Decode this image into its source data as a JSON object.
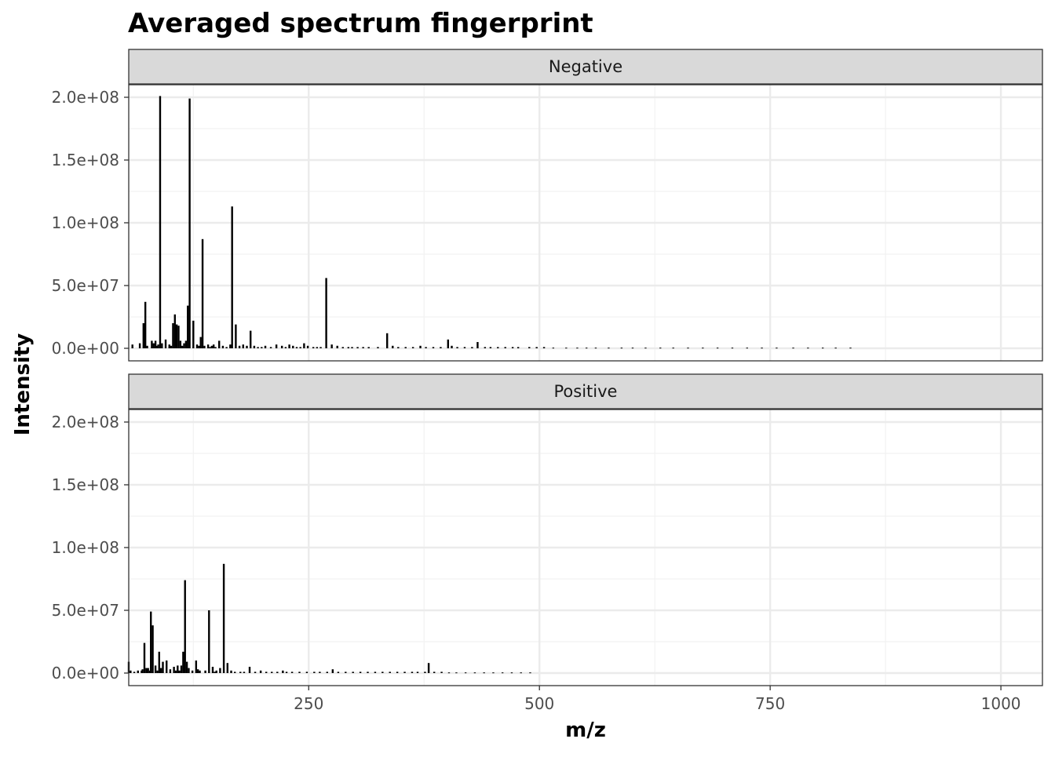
{
  "chart_data": {
    "type": "bar",
    "title": "Averaged spectrum fingerprint",
    "xlabel": "m/z",
    "ylabel": "Intensity",
    "xlim": [
      55,
      1045
    ],
    "ylim": [
      -10000000,
      210000000
    ],
    "x_ticks": [
      250,
      500,
      750,
      1000
    ],
    "x_tick_labels": [
      "250",
      "500",
      "750",
      "1000"
    ],
    "y_ticks": [
      0,
      50000000,
      100000000,
      150000000,
      200000000
    ],
    "y_tick_labels": [
      "0.0e+00",
      "5.0e+07",
      "1.0e+08",
      "1.5e+08",
      "2.0e+08"
    ],
    "grid": true,
    "bar_color": "#000000",
    "panels": [
      {
        "name": "Negative",
        "x": [
          59,
          67,
          71,
          73,
          75,
          80,
          82,
          84,
          85,
          87,
          89,
          91,
          95,
          99,
          101,
          103,
          105,
          107,
          109,
          111,
          113,
          115,
          117,
          119,
          121,
          125,
          129,
          131,
          133,
          135,
          137,
          141,
          143,
          145,
          147,
          149,
          153,
          157,
          161,
          165,
          167,
          171,
          175,
          179,
          183,
          187,
          191,
          195,
          199,
          203,
          209,
          215,
          221,
          225,
          229,
          233,
          237,
          241,
          245,
          249,
          255,
          259,
          263,
          269,
          275,
          281,
          287,
          293,
          297,
          303,
          309,
          315,
          325,
          335,
          341,
          347,
          355,
          363,
          371,
          377,
          385,
          393,
          401,
          405,
          411,
          419,
          427,
          433,
          441,
          447,
          455,
          463,
          471,
          477,
          489,
          497,
          505,
          515,
          529,
          541,
          551,
          561,
          575,
          589,
          601,
          615,
          631,
          645,
          661,
          677,
          693,
          709,
          725,
          741,
          757,
          775,
          791,
          807,
          821,
          837
        ],
        "values": [
          3000000,
          4000000,
          20000000,
          37000000,
          2000000,
          6000000,
          4000000,
          6000000,
          2000000,
          3000000,
          201000000,
          4000000,
          7000000,
          3000000,
          2000000,
          20000000,
          27000000,
          19000000,
          18000000,
          6000000,
          2000000,
          4000000,
          6000000,
          34000000,
          199000000,
          22000000,
          3000000,
          2000000,
          9000000,
          87000000,
          2000000,
          3000000,
          1000000,
          2000000,
          3000000,
          1000000,
          6000000,
          2000000,
          1000000,
          3000000,
          113000000,
          19000000,
          2000000,
          3000000,
          2000000,
          14000000,
          2000000,
          1000000,
          1000000,
          2000000,
          1000000,
          3000000,
          2000000,
          1000000,
          3000000,
          2000000,
          1000000,
          1000000,
          4000000,
          2000000,
          1000000,
          1000000,
          1000000,
          56000000,
          3000000,
          2000000,
          1000000,
          1000000,
          1000000,
          1000000,
          1000000,
          1000000,
          1000000,
          12000000,
          2000000,
          1000000,
          1000000,
          1000000,
          2000000,
          1000000,
          1000000,
          1000000,
          7000000,
          2000000,
          1000000,
          1000000,
          1000000,
          5000000,
          1000000,
          1000000,
          1000000,
          1000000,
          1000000,
          1000000,
          1000000,
          1000000,
          1000000,
          500000,
          500000,
          500000,
          500000,
          500000,
          500000,
          500000,
          500000,
          500000,
          500000,
          500000,
          500000,
          500000,
          500000,
          500000,
          500000,
          500000,
          500000,
          500000,
          500000,
          500000,
          500000,
          500000
        ]
      },
      {
        "name": "Positive",
        "x": [
          55,
          57,
          61,
          65,
          69,
          70,
          72,
          74,
          76,
          78,
          79,
          81,
          84,
          86,
          88,
          90,
          92,
          96,
          100,
          104,
          106,
          108,
          110,
          112,
          114,
          116,
          118,
          120,
          124,
          128,
          130,
          132,
          138,
          142,
          146,
          148,
          150,
          154,
          158,
          162,
          166,
          170,
          176,
          180,
          186,
          192,
          198,
          204,
          210,
          216,
          222,
          226,
          232,
          240,
          248,
          256,
          262,
          270,
          276,
          282,
          290,
          298,
          306,
          314,
          322,
          330,
          338,
          346,
          354,
          362,
          368,
          376,
          380,
          386,
          394,
          402,
          410,
          420,
          430,
          440,
          450,
          460,
          470,
          480,
          490
        ],
        "values": [
          9000000,
          2000000,
          1000000,
          2000000,
          2000000,
          3000000,
          24000000,
          4000000,
          4000000,
          2000000,
          49000000,
          38000000,
          6000000,
          2000000,
          17000000,
          4000000,
          9000000,
          10000000,
          3000000,
          5000000,
          2000000,
          6000000,
          2000000,
          6000000,
          17000000,
          74000000,
          9000000,
          4000000,
          2000000,
          10000000,
          3000000,
          2000000,
          2000000,
          50000000,
          5000000,
          1000000,
          2000000,
          4000000,
          87000000,
          8000000,
          2000000,
          1000000,
          1000000,
          1000000,
          5000000,
          1000000,
          2000000,
          1000000,
          1000000,
          1000000,
          2000000,
          1000000,
          1000000,
          1000000,
          1000000,
          1000000,
          1000000,
          1000000,
          3000000,
          1000000,
          1000000,
          1000000,
          1000000,
          1000000,
          1000000,
          1000000,
          1000000,
          1000000,
          1000000,
          1000000,
          1000000,
          1000000,
          8000000,
          1000000,
          1000000,
          500000,
          500000,
          500000,
          500000,
          500000,
          500000,
          500000,
          500000,
          500000,
          500000
        ]
      }
    ]
  }
}
